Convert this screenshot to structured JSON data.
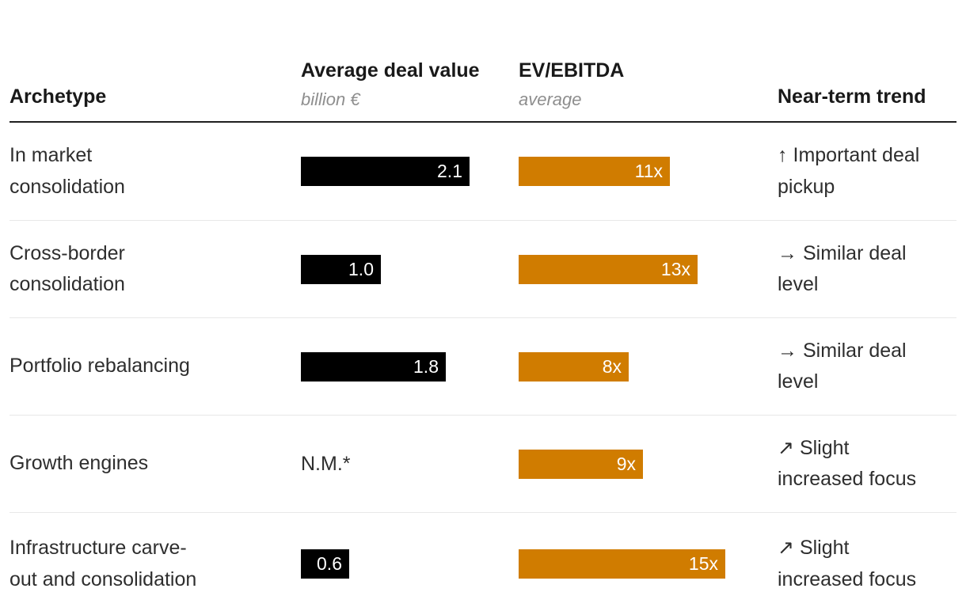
{
  "header": {
    "archetype": "Archetype",
    "deal_value_title": "Average deal value",
    "deal_value_unit": "billion €",
    "ev_ebitda_title": "EV/EBITDA",
    "ev_ebitda_unit": "average",
    "trend": "Near-term trend"
  },
  "colors": {
    "deal_bar": "#000000",
    "ev_bar": "#d07c00",
    "text": "#2e2e2e",
    "subheader": "#8e8e8e"
  },
  "rows": [
    {
      "archetype": "In market consolidation",
      "archetype_lines": [
        "In market",
        "consolidation"
      ],
      "deal_value": 2.1,
      "deal_label": "2.1",
      "ev_ebitda": 11,
      "ev_label": "11x",
      "trend_arrow": "↑",
      "trend_lines": [
        "Important deal",
        "pickup"
      ]
    },
    {
      "archetype": "Cross-border consolidation",
      "archetype_lines": [
        "Cross-border",
        "consolidation"
      ],
      "deal_value": 1.0,
      "deal_label": "1.0",
      "ev_ebitda": 13,
      "ev_label": "13x",
      "trend_arrow": "→",
      "trend_lines": [
        "Similar deal",
        "level"
      ]
    },
    {
      "archetype": "Portfolio rebalancing",
      "archetype_lines": [
        "Portfolio rebalancing"
      ],
      "deal_value": 1.8,
      "deal_label": "1.8",
      "ev_ebitda": 8,
      "ev_label": "8x",
      "trend_arrow": "→",
      "trend_lines": [
        "Similar deal",
        "level"
      ]
    },
    {
      "archetype": "Growth engines",
      "archetype_lines": [
        "Growth engines"
      ],
      "deal_value": null,
      "deal_label": "N.M.*",
      "ev_ebitda": 9,
      "ev_label": "9x",
      "trend_arrow": "↗",
      "trend_lines": [
        "Slight",
        "increased focus"
      ]
    },
    {
      "archetype": "Infrastructure carve-out and consolidation",
      "archetype_lines": [
        "Infrastructure carve-",
        "out and consolidation"
      ],
      "deal_value": 0.6,
      "deal_label": "0.6",
      "ev_ebitda": 15,
      "ev_label": "15x",
      "trend_arrow": "↗",
      "trend_lines": [
        "Slight",
        "increased focus"
      ]
    }
  ],
  "chart_data": {
    "type": "bar",
    "orientation": "horizontal",
    "categories": [
      "In market consolidation",
      "Cross-border consolidation",
      "Portfolio rebalancing",
      "Growth engines",
      "Infrastructure carve-out and consolidation"
    ],
    "series": [
      {
        "name": "Average deal value (billion €)",
        "values": [
          2.1,
          1.0,
          1.8,
          null,
          0.6
        ],
        "labels": [
          "2.1",
          "1.0",
          "1.8",
          "N.M.*",
          "0.6"
        ],
        "color": "#000000"
      },
      {
        "name": "EV/EBITDA (average)",
        "values": [
          11,
          13,
          8,
          9,
          15
        ],
        "labels": [
          "11x",
          "13x",
          "8x",
          "9x",
          "15x"
        ],
        "color": "#d07c00"
      }
    ],
    "annotations": [
      "↑ Important deal pickup",
      "→ Similar deal level",
      "→ Similar deal level",
      "↗ Slight increased focus",
      "↗ Slight increased focus"
    ],
    "column_headers": [
      "Archetype",
      "Average deal value (billion €)",
      "EV/EBITDA (average)",
      "Near-term trend"
    ],
    "grid": false,
    "legend_position": "none"
  }
}
